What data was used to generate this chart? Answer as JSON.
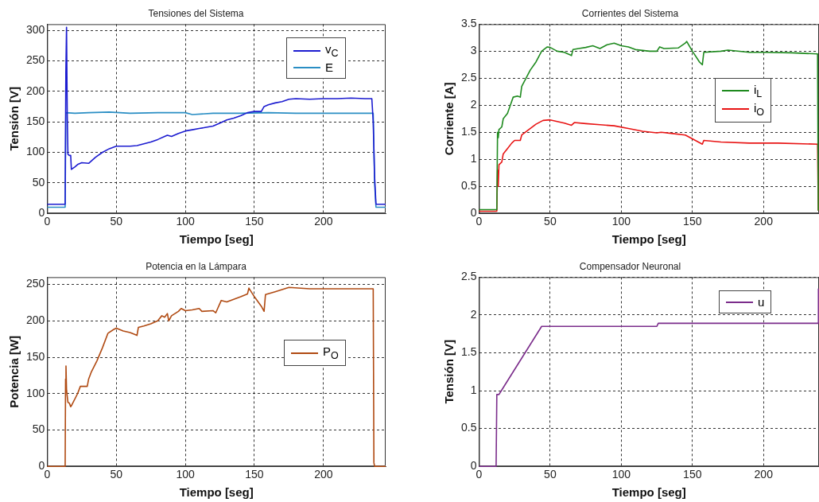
{
  "chart_data": [
    {
      "type": "line",
      "title": "Tensiones del Sistema",
      "xlabel": "Tiempo [seg]",
      "ylabel": "Tensión [V]",
      "xlim": [
        0,
        245
      ],
      "xticks": [
        0,
        50,
        100,
        150,
        200
      ],
      "ylim": [
        0,
        310
      ],
      "yticks": [
        0,
        50,
        100,
        150,
        200,
        250,
        300
      ],
      "grid": true,
      "legend": "top right",
      "line_style": "solid",
      "marker": "none",
      "series": [
        {
          "name": "v$_{C}$",
          "color": "#1c1cd0",
          "x": [
            0,
            13,
            13.5,
            14,
            14.5,
            15,
            16,
            17,
            17.5,
            20,
            22,
            25,
            30,
            35,
            40,
            45,
            50,
            55,
            60,
            65,
            70,
            75,
            80,
            85,
            87,
            90,
            95,
            100,
            105,
            110,
            115,
            120,
            125,
            130,
            135,
            140,
            145,
            150,
            155,
            157,
            160,
            165,
            170,
            175,
            180,
            190,
            200,
            210,
            220,
            230,
            235,
            236,
            237,
            238,
            245
          ],
          "values": [
            15,
            15,
            230,
            305,
            165,
            97,
            95,
            95,
            72,
            76,
            80,
            83,
            82,
            92,
            100,
            106,
            110,
            110,
            110,
            111,
            114,
            117,
            121,
            126,
            128,
            126,
            131,
            135,
            137,
            139,
            141,
            143,
            148,
            153,
            156,
            160,
            165,
            167,
            167,
            175,
            178,
            181,
            183,
            187,
            188,
            187,
            188,
            188,
            189,
            188,
            188,
            150,
            60,
            15,
            15
          ]
        },
        {
          "name": "E",
          "color": "#2a8ec4",
          "x": [
            0,
            13,
            13.5,
            20,
            30,
            45,
            60,
            80,
            100,
            105,
            120,
            140,
            160,
            180,
            200,
            220,
            236,
            237,
            238,
            245
          ],
          "values": [
            10,
            10,
            165,
            164,
            165,
            166,
            164,
            165,
            165,
            162,
            164,
            164,
            165,
            164,
            164,
            164,
            164,
            50,
            10,
            10
          ]
        }
      ]
    },
    {
      "type": "line",
      "title": "Corrientes del Sistema",
      "xlabel": "Tiempo [seg]",
      "ylabel": "Corriente [A]",
      "xlim": [
        0,
        239
      ],
      "xticks": [
        0,
        50,
        100,
        150,
        200
      ],
      "ylim": [
        0,
        3.5
      ],
      "yticks": [
        0,
        0.5,
        1,
        1.5,
        2,
        2.5,
        3,
        3.5
      ],
      "grid": true,
      "legend": "right",
      "line_style": "solid",
      "marker": "none",
      "series": [
        {
          "name": "i$_{L}$",
          "color": "#1e8a1e",
          "x": [
            0,
            12.5,
            13,
            13.5,
            14,
            16,
            17,
            20,
            22,
            24,
            27,
            29,
            30,
            33,
            36,
            40,
            44,
            48,
            50,
            55,
            60,
            65,
            66,
            70,
            75,
            80,
            85,
            90,
            95,
            100,
            105,
            110,
            120,
            125,
            127,
            130,
            140,
            145,
            146,
            150,
            155,
            157,
            158,
            170,
            175,
            190,
            200,
            220,
            238,
            238.5
          ],
          "values": [
            0.07,
            0.07,
            1.5,
            1.4,
            1.55,
            1.6,
            1.75,
            1.85,
            2.0,
            2.15,
            2.17,
            2.15,
            2.35,
            2.5,
            2.65,
            2.8,
            3.0,
            3.08,
            3.07,
            3.0,
            2.98,
            2.92,
            3.03,
            3.05,
            3.07,
            3.1,
            3.05,
            3.12,
            3.15,
            3.1,
            3.08,
            3.03,
            3.0,
            3.0,
            3.08,
            3.05,
            3.06,
            3.15,
            3.18,
            3.0,
            2.8,
            2.75,
            2.98,
            3.0,
            3.02,
            2.98,
            2.98,
            2.97,
            2.95,
            0.05
          ]
        },
        {
          "name": "i$_{O}$",
          "color": "#e81414",
          "x": [
            0,
            12.5,
            13,
            13.5,
            14,
            16,
            17,
            20,
            23,
            25,
            29,
            30,
            35,
            40,
            45,
            50,
            55,
            60,
            65,
            67,
            75,
            85,
            95,
            105,
            115,
            125,
            128,
            135,
            145,
            150,
            157,
            158,
            170,
            190,
            210,
            238,
            238.5
          ],
          "values": [
            0.04,
            0.04,
            0.8,
            0.5,
            0.9,
            0.95,
            1.1,
            1.2,
            1.3,
            1.35,
            1.35,
            1.45,
            1.55,
            1.65,
            1.72,
            1.73,
            1.7,
            1.67,
            1.63,
            1.68,
            1.66,
            1.64,
            1.62,
            1.57,
            1.52,
            1.49,
            1.5,
            1.48,
            1.45,
            1.38,
            1.28,
            1.35,
            1.32,
            1.3,
            1.3,
            1.28,
            0.05
          ]
        }
      ]
    },
    {
      "type": "line",
      "title": "Potencia en la Lámpara",
      "xlabel": "Tiempo [seg]",
      "ylabel": "Potencia [W]",
      "xlim": [
        0,
        245
      ],
      "xticks": [
        0,
        50,
        100,
        150,
        200
      ],
      "ylim": [
        0,
        260
      ],
      "yticks": [
        0,
        50,
        100,
        150,
        200,
        250
      ],
      "grid": true,
      "legend": "right",
      "line_style": "solid",
      "marker": "none",
      "series": [
        {
          "name": "P$_{O}$",
          "color": "#b04a12",
          "x": [
            0,
            13,
            13.3,
            13.6,
            14,
            15,
            16,
            17,
            18,
            22,
            24,
            29,
            30,
            32,
            36,
            40,
            44,
            48,
            50,
            55,
            60,
            65,
            66,
            70,
            75,
            80,
            83,
            85,
            87,
            88,
            90,
            95,
            97,
            100,
            105,
            110,
            112,
            120,
            122,
            126,
            130,
            140,
            145,
            146,
            150,
            155,
            157,
            158,
            165,
            175,
            190,
            200,
            220,
            236,
            236.5,
            237,
            245
          ],
          "values": [
            0,
            0,
            120,
            138,
            105,
            88,
            87,
            82,
            85,
            100,
            110,
            110,
            120,
            130,
            145,
            163,
            183,
            188,
            190,
            186,
            184,
            180,
            191,
            193,
            196,
            200,
            207,
            205,
            210,
            200,
            207,
            213,
            217,
            214,
            215,
            217,
            213,
            214,
            211,
            228,
            226,
            233,
            237,
            245,
            233,
            220,
            213,
            236,
            240,
            246,
            244,
            244,
            244,
            244,
            5,
            0,
            0
          ]
        }
      ]
    },
    {
      "type": "line",
      "title": "Compensador Neuronal",
      "xlabel": "Tiempo [seg]",
      "ylabel": "Tensión [V]",
      "xlim": [
        0,
        239
      ],
      "xticks": [
        0,
        50,
        100,
        150,
        200
      ],
      "ylim": [
        0,
        2.5
      ],
      "yticks": [
        0,
        0.5,
        1,
        1.5,
        2,
        2.5
      ],
      "grid": true,
      "legend": "top right",
      "line_style": "solid",
      "marker": "none",
      "series": [
        {
          "name": "u",
          "color": "#7b2d8b",
          "x": [
            0,
            12,
            12.5,
            14,
            15,
            44,
            125,
            126,
            238.5,
            238.6
          ],
          "values": [
            0,
            0,
            0.95,
            0.95,
            0.98,
            1.85,
            1.85,
            1.89,
            1.89,
            2.35
          ]
        }
      ]
    }
  ]
}
